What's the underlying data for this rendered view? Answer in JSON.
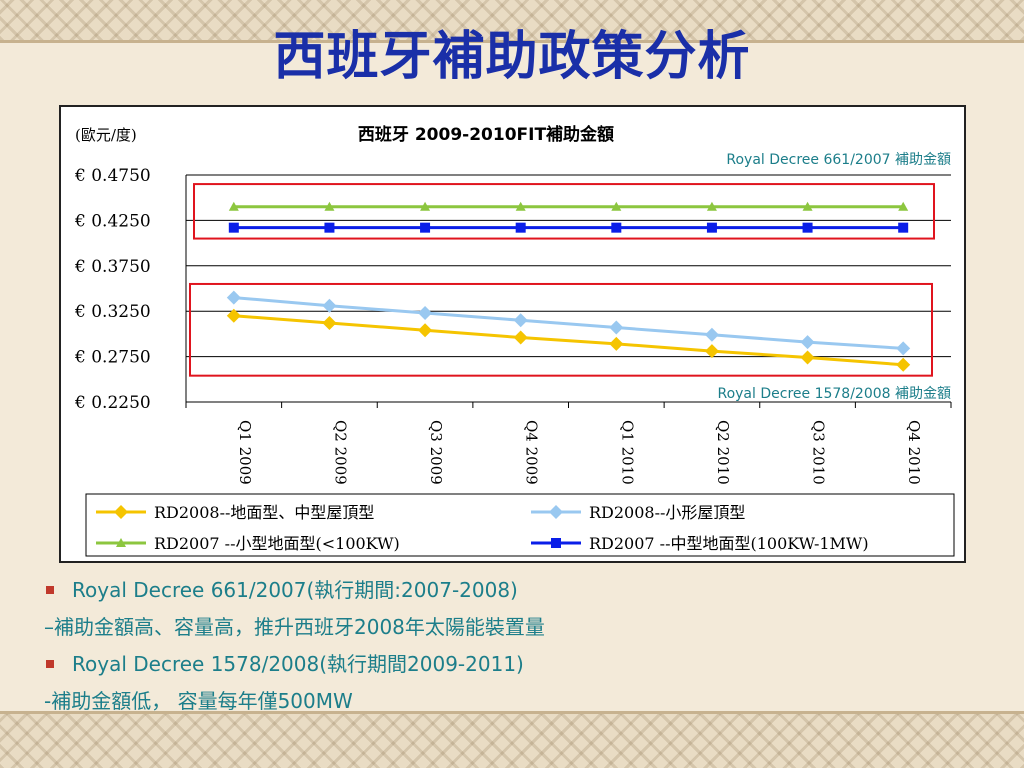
{
  "slide": {
    "title": "西班牙補助政策分析"
  },
  "chart_data": {
    "type": "line",
    "title": "西班牙 2009-2010FIT補助金額",
    "ylabel": "(歐元/度)",
    "ylim": [
      0.225,
      0.475
    ],
    "yticks": [
      "€ 0.4750",
      "€ 0.4250",
      "€ 0.3750",
      "€ 0.3250",
      "€ 0.2750",
      "€ 0.2250"
    ],
    "ytick_values": [
      0.475,
      0.425,
      0.375,
      0.325,
      0.275,
      0.225
    ],
    "categories": [
      "Q1 2009",
      "Q2 2009",
      "Q3 2009",
      "Q4 2009",
      "Q1 2010",
      "Q2 2010",
      "Q3 2010",
      "Q4 2010"
    ],
    "grid": "horizontal",
    "legend_position": "bottom",
    "series": [
      {
        "name": "RD2008--地面型、中型屋頂型",
        "color": "#f5c400",
        "marker": "diamond",
        "values": [
          0.32,
          0.312,
          0.304,
          0.296,
          0.289,
          0.281,
          0.274,
          0.266
        ]
      },
      {
        "name": "RD2008--小形屋頂型",
        "color": "#99c8f0",
        "marker": "diamond",
        "values": [
          0.34,
          0.331,
          0.323,
          0.315,
          0.307,
          0.299,
          0.291,
          0.284
        ]
      },
      {
        "name": "RD2007 --小型地面型(<100KW)",
        "color": "#8cc63f",
        "marker": "triangle",
        "values": [
          0.44,
          0.44,
          0.44,
          0.44,
          0.44,
          0.44,
          0.44,
          0.44
        ]
      },
      {
        "name": "RD2007 --中型地面型(100KW-1MW)",
        "color": "#0a1ee8",
        "marker": "square",
        "values": [
          0.417,
          0.417,
          0.417,
          0.417,
          0.417,
          0.417,
          0.417,
          0.417
        ]
      }
    ],
    "annotations": [
      {
        "text": "Royal Decree 661/2007 補助金額",
        "color": "#1c7e8a"
      },
      {
        "text": "Royal Decree 1578/2008 補助金額",
        "color": "#1c7e8a"
      }
    ],
    "highlight_box_color": "#e0141e"
  },
  "bullets": [
    {
      "text": "Royal Decree 661/2007(執行期間:2007-2008)",
      "marker": true
    },
    {
      "text": "–補助金額高、容量高，推升西班牙2008年太陽能裝置量",
      "marker": false
    },
    {
      "text": "Royal Decree 1578/2008(執行期間2009-2011)",
      "marker": true
    },
    {
      "text": "-補助金額低， 容量每年僅500MW",
      "marker": false
    }
  ]
}
